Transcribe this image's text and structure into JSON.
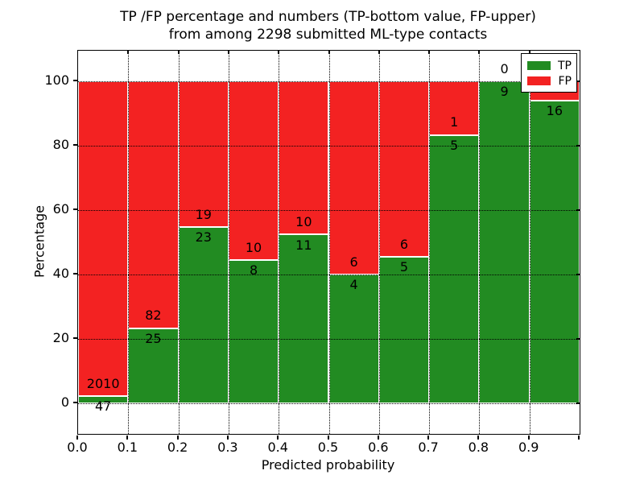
{
  "figure": {
    "title_line1": "TP /FP percentage and numbers (TP-bottom value, FP-upper)",
    "title_line2": "from among 2298 submitted ML-type contacts",
    "background": "#ffffff"
  },
  "chart_data": {
    "type": "bar",
    "stacked": true,
    "normalized_to_percent": true,
    "title": "TP /FP percentage and numbers (TP-bottom value, FP-upper) from among 2298 submitted ML-type contacts",
    "xlabel": "Predicted probability",
    "ylabel": "Percentage",
    "total_submitted": 2298,
    "bins": [
      [
        0.0,
        0.1
      ],
      [
        0.1,
        0.2
      ],
      [
        0.2,
        0.3
      ],
      [
        0.3,
        0.4
      ],
      [
        0.4,
        0.5
      ],
      [
        0.5,
        0.6
      ],
      [
        0.6,
        0.7
      ],
      [
        0.7,
        0.8
      ],
      [
        0.8,
        0.9
      ],
      [
        0.9,
        1.0
      ]
    ],
    "series": [
      {
        "name": "TP",
        "color": "#228b22",
        "counts": [
          47,
          25,
          23,
          8,
          11,
          4,
          5,
          5,
          9,
          16
        ]
      },
      {
        "name": "FP",
        "color": "#f32222",
        "counts": [
          2010,
          82,
          19,
          10,
          10,
          6,
          6,
          1,
          0,
          1
        ]
      }
    ],
    "tp_percent": [
      2.29,
      23.36,
      54.76,
      44.44,
      52.38,
      40.0,
      45.45,
      83.33,
      100.0,
      94.12
    ],
    "xticks": [
      "0.0",
      "0.1",
      "0.2",
      "0.3",
      "0.4",
      "0.5",
      "0.6",
      "0.7",
      "0.8",
      "0.9"
    ],
    "yticks": [
      0,
      20,
      40,
      60,
      80,
      100
    ],
    "xlim": [
      0.0,
      1.0
    ],
    "ylim": [
      -9.5,
      109.5
    ],
    "grid": "dotted",
    "grid_color": "#000000",
    "bar_edge_color": "#ffffff",
    "legend": {
      "position": "upper right",
      "entries": [
        {
          "label": "TP",
          "color": "#228b22"
        },
        {
          "label": "FP",
          "color": "#f32222"
        }
      ]
    }
  }
}
